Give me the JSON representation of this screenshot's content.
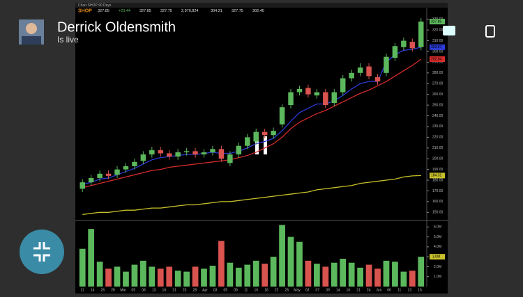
{
  "stream": {
    "name": "Derrick Oldensmith",
    "status": "Is live"
  },
  "chart_window": {
    "title": "Chart SHOP 90 Days"
  },
  "chart_data": {
    "type": "candlestick",
    "symbol": "SHOP",
    "quote": [
      "327.85",
      "+23.44",
      "327.85",
      "327.75",
      "2,970,824",
      "304.21",
      "327.75",
      "302.40"
    ],
    "x_labels": [
      "11",
      "14",
      "26",
      "28",
      "Mar",
      "05",
      "08",
      "13",
      "16",
      "21",
      "23",
      "28",
      "Apr",
      "03",
      "05",
      "09",
      "11",
      "16",
      "18",
      "22",
      "26",
      "May",
      "03",
      "07",
      "09",
      "14",
      "16",
      "21",
      "24",
      "Jun",
      "06",
      "11",
      "13",
      "16"
    ],
    "open": [
      172,
      178,
      182,
      186,
      185,
      190,
      193,
      198,
      204,
      208,
      205,
      202,
      206,
      207,
      204,
      206,
      209,
      196,
      204,
      212,
      216,
      225,
      222,
      232,
      250,
      262,
      266,
      259,
      262,
      252,
      262,
      275,
      280,
      286,
      276,
      280,
      294,
      304,
      309,
      304
    ],
    "high": [
      181,
      185,
      189,
      189,
      193,
      196,
      200,
      207,
      211,
      211,
      208,
      209,
      210,
      210,
      209,
      212,
      212,
      207,
      215,
      223,
      228,
      228,
      229,
      251,
      265,
      268,
      269,
      265,
      265,
      265,
      278,
      283,
      289,
      289,
      279,
      298,
      308,
      313,
      312,
      331
    ],
    "low": [
      169,
      175,
      179,
      181,
      182,
      187,
      190,
      195,
      201,
      202,
      199,
      199,
      203,
      201,
      201,
      203,
      197,
      193,
      201,
      209,
      213,
      219,
      219,
      229,
      247,
      259,
      257,
      256,
      247,
      249,
      259,
      272,
      277,
      274,
      269,
      277,
      291,
      301,
      300,
      301
    ],
    "close": [
      178,
      182,
      186,
      184,
      190,
      193,
      197,
      204,
      208,
      205,
      202,
      206,
      207,
      204,
      206,
      209,
      200,
      204,
      212,
      220,
      225,
      222,
      226,
      248,
      262,
      265,
      260,
      262,
      250,
      262,
      275,
      280,
      285,
      277,
      272,
      295,
      305,
      310,
      303,
      327.85
    ],
    "volume": [
      3.8,
      5.8,
      2.5,
      1.8,
      2.0,
      1.5,
      2.2,
      2.6,
      2.0,
      1.8,
      2.0,
      1.6,
      1.5,
      2.0,
      1.8,
      2.1,
      4.6,
      2.4,
      1.9,
      2.2,
      2.6,
      2.3,
      3.0,
      6.2,
      5.0,
      4.5,
      2.6,
      2.3,
      2.0,
      2.4,
      2.8,
      2.4,
      1.9,
      2.2,
      1.8,
      2.6,
      2.5,
      1.5,
      1.6,
      3.0
    ],
    "averages": [
      {
        "color": "#2b3bd6",
        "values": [
          176,
          178,
          181,
          182,
          185,
          188,
          191,
          195,
          199,
          201,
          202,
          203,
          204,
          204,
          205,
          206,
          205,
          205,
          207,
          210,
          214,
          216,
          219,
          226,
          235,
          243,
          247,
          251,
          251,
          254,
          259,
          265,
          270,
          272,
          272,
          290,
          297,
          301,
          302,
          303.97
        ]
      },
      {
        "color": "#d62b2b",
        "values": [
          173,
          175,
          177,
          179,
          181,
          183,
          185,
          187,
          189,
          190,
          192,
          193,
          194,
          195,
          196,
          197,
          198,
          199,
          201,
          203,
          206,
          210,
          214,
          220,
          228,
          234,
          238,
          242,
          245,
          249,
          253,
          257,
          261,
          264,
          268,
          272,
          277,
          282,
          287,
          292.84
        ]
      },
      {
        "color": "#c8c02a",
        "values": [
          148,
          149,
          150,
          150,
          151,
          152,
          152,
          153,
          154,
          154,
          155,
          156,
          157,
          157,
          158,
          159,
          160,
          160,
          161,
          162,
          163,
          164,
          165,
          166,
          167,
          168,
          169,
          171,
          172,
          173,
          174,
          175,
          177,
          178,
          179,
          180,
          181,
          183,
          184,
          184.31
        ]
      }
    ],
    "up_color": "#5cb85c",
    "down_color": "#d9534f",
    "ylim": [
      145,
      335
    ],
    "yticks": [
      {
        "value": 150,
        "label": "150.00"
      },
      {
        "value": 160,
        "label": "160.00"
      },
      {
        "value": 170,
        "label": "170.00"
      },
      {
        "value": 180,
        "label": "180.00"
      },
      {
        "value": 190,
        "label": "190.00"
      },
      {
        "value": 200,
        "label": "200.00"
      },
      {
        "value": 210,
        "label": "210.00"
      },
      {
        "value": 220,
        "label": "220.00"
      },
      {
        "value": 230,
        "label": "230.00"
      },
      {
        "value": 240,
        "label": "240.00"
      },
      {
        "value": 250,
        "label": "250.00"
      },
      {
        "value": 260,
        "label": "260.00"
      },
      {
        "value": 270,
        "label": "270.00"
      },
      {
        "value": 280,
        "label": "280.00"
      },
      {
        "value": 290,
        "label": "290.00"
      },
      {
        "value": 300,
        "label": "300.00"
      },
      {
        "value": 310,
        "label": "310.00"
      },
      {
        "value": 320,
        "label": "320.00"
      },
      {
        "value": 330,
        "label": "330.00"
      }
    ],
    "markers": [
      {
        "value": 327.85,
        "label": "327.85",
        "color": "#5cb85c"
      },
      {
        "value": 303.97,
        "label": "303.97",
        "color": "#2b3bd6"
      },
      {
        "value": 292.84,
        "label": "292.84",
        "color": "#d62b2b"
      },
      {
        "value": 184.31,
        "label": "184.31",
        "color": "#c8c02a"
      }
    ],
    "y2lim": [
      0,
      6.3
    ],
    "y2ticks": [
      {
        "value": 1,
        "label": "1.0M"
      },
      {
        "value": 2,
        "label": "2.0M"
      },
      {
        "value": 3,
        "label": "3.0M"
      },
      {
        "value": 4,
        "label": "4.0M"
      },
      {
        "value": 5,
        "label": "5.0M"
      },
      {
        "value": 6,
        "label": "6.0M"
      }
    ],
    "volume_marker": {
      "value": 3.0,
      "label": "3.0M",
      "color": "#c8c02a"
    }
  }
}
